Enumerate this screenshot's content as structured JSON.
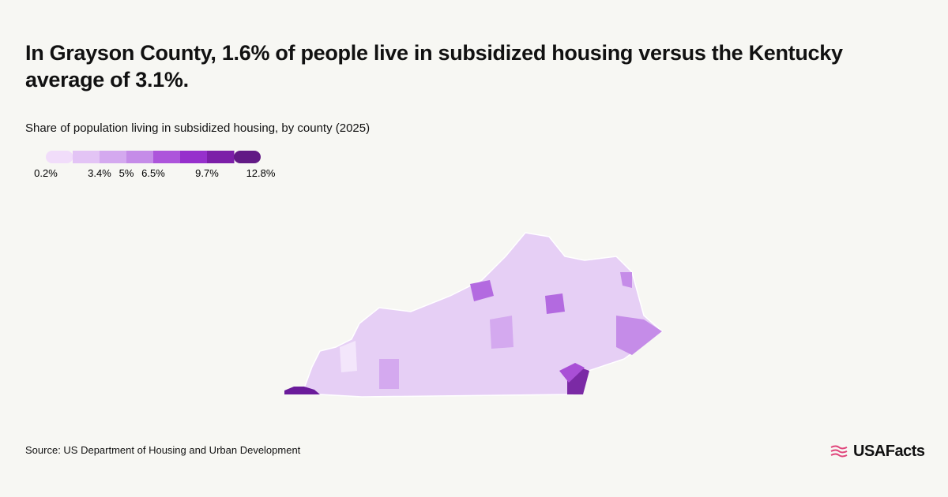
{
  "header": {
    "title": "In Grayson County, 1.6% of people live in subsidized housing versus the Kentucky average of 3.1%.",
    "subtitle": "Share of population living in subsidized housing, by county (2025)"
  },
  "legend": {
    "colors": [
      "#f1ddfa",
      "#e3c4f5",
      "#d4a9ef",
      "#c58ce8",
      "#ad55db",
      "#9630cc",
      "#7c1fa8",
      "#621a85"
    ],
    "ticks": [
      {
        "value": 0.2,
        "label": "0.2%"
      },
      null,
      {
        "value": 3.4,
        "label": "3.4%"
      },
      {
        "value": 5,
        "label": "5%"
      },
      {
        "value": 6.5,
        "label": "6.5%"
      },
      null,
      {
        "value": 9.7,
        "label": "9.7%"
      },
      null,
      {
        "value": 12.8,
        "label": "12.8%"
      }
    ]
  },
  "footer": {
    "source": "Source: US Department of Housing and Urban Development",
    "logo": "USAFacts"
  }
}
